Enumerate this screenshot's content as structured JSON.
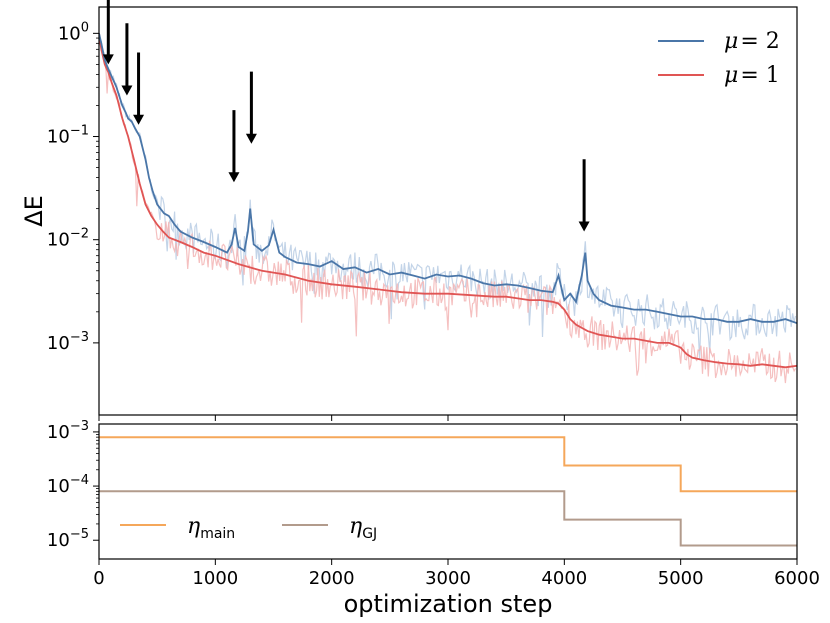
{
  "chart_data": [
    {
      "type": "line",
      "panel": "top",
      "yscale": "log",
      "ylabel": "ΔE",
      "xlim": [
        0,
        6000
      ],
      "ylim": [
        0.0002,
        1.8
      ],
      "xticks": [
        0,
        1000,
        2000,
        3000,
        4000,
        5000,
        6000
      ],
      "yticks": [
        {
          "value": 1,
          "base": "10",
          "exp": "0"
        },
        {
          "value": 0.1,
          "base": "10",
          "exp": "−1"
        },
        {
          "value": 0.01,
          "base": "10",
          "exp": "−2"
        },
        {
          "value": 0.001,
          "base": "10",
          "exp": "−3"
        }
      ],
      "legend": {
        "position": "top-right"
      },
      "series": [
        {
          "name": "μ = 2",
          "label_var": "μ",
          "label_eq": "= 2",
          "color": "#4a76a8",
          "raw_color": "#b8cce4",
          "x": [
            0,
            20,
            50,
            80,
            110,
            150,
            200,
            230,
            250,
            280,
            310,
            350,
            400,
            430,
            460,
            500,
            560,
            600,
            650,
            700,
            800,
            900,
            1000,
            1100,
            1140,
            1170,
            1200,
            1250,
            1280,
            1300,
            1330,
            1400,
            1460,
            1500,
            1550,
            1600,
            1700,
            1800,
            1900,
            2000,
            2100,
            2200,
            2300,
            2400,
            2500,
            2600,
            2700,
            2800,
            2900,
            3000,
            3100,
            3200,
            3300,
            3400,
            3500,
            3600,
            3700,
            3800,
            3900,
            3950,
            4000,
            4050,
            4100,
            4150,
            4180,
            4200,
            4250,
            4300,
            4400,
            4500,
            4600,
            4700,
            4800,
            4900,
            5000,
            5100,
            5200,
            5300,
            5400,
            5500,
            5600,
            5700,
            5800,
            5900,
            6000
          ],
          "y": [
            1.0,
            0.8,
            0.55,
            0.45,
            0.38,
            0.3,
            0.2,
            0.17,
            0.15,
            0.14,
            0.12,
            0.1,
            0.06,
            0.04,
            0.03,
            0.022,
            0.018,
            0.017,
            0.014,
            0.012,
            0.0105,
            0.0095,
            0.0085,
            0.0075,
            0.009,
            0.013,
            0.0085,
            0.0078,
            0.012,
            0.02,
            0.009,
            0.0078,
            0.0088,
            0.0125,
            0.0075,
            0.0068,
            0.006,
            0.0058,
            0.0055,
            0.0062,
            0.0052,
            0.0054,
            0.0048,
            0.0052,
            0.0046,
            0.0048,
            0.0045,
            0.0042,
            0.0046,
            0.0044,
            0.0045,
            0.0042,
            0.0038,
            0.0036,
            0.0037,
            0.0036,
            0.0034,
            0.0032,
            0.0031,
            0.0045,
            0.0026,
            0.003,
            0.0025,
            0.0045,
            0.0075,
            0.004,
            0.003,
            0.0026,
            0.0023,
            0.0022,
            0.0021,
            0.0021,
            0.002,
            0.0019,
            0.0018,
            0.0018,
            0.0017,
            0.0017,
            0.0016,
            0.0016,
            0.0017,
            0.0016,
            0.0016,
            0.0017,
            0.00155
          ]
        },
        {
          "name": "μ = 1",
          "label_var": "μ",
          "label_eq": "= 1",
          "color": "#e05554",
          "raw_color": "#f3b5b5",
          "x": [
            0,
            20,
            50,
            80,
            110,
            150,
            200,
            250,
            300,
            350,
            400,
            450,
            500,
            550,
            600,
            700,
            800,
            900,
            1000,
            1200,
            1400,
            1600,
            1800,
            2000,
            2200,
            2400,
            2600,
            2800,
            3000,
            3200,
            3400,
            3500,
            3600,
            3700,
            3800,
            3900,
            3950,
            4000,
            4050,
            4100,
            4200,
            4300,
            4400,
            4500,
            4600,
            4700,
            4800,
            4900,
            4950,
            5000,
            5050,
            5100,
            5200,
            5300,
            5400,
            5500,
            5600,
            5700,
            5800,
            5900,
            6000
          ],
          "y": [
            1.0,
            0.7,
            0.5,
            0.42,
            0.33,
            0.25,
            0.15,
            0.1,
            0.06,
            0.035,
            0.022,
            0.017,
            0.014,
            0.012,
            0.0105,
            0.0095,
            0.0085,
            0.0075,
            0.007,
            0.0058,
            0.005,
            0.0046,
            0.004,
            0.0037,
            0.0035,
            0.0033,
            0.0031,
            0.003,
            0.003,
            0.0029,
            0.0028,
            0.0028,
            0.0027,
            0.0026,
            0.0026,
            0.0025,
            0.0024,
            0.0021,
            0.0017,
            0.0015,
            0.0013,
            0.0012,
            0.00115,
            0.0011,
            0.0011,
            0.00105,
            0.001,
            0.001,
            0.00095,
            0.0009,
            0.00078,
            0.00072,
            0.00068,
            0.00065,
            0.00063,
            0.00062,
            0.0006,
            0.00062,
            0.0006,
            0.00058,
            0.0006
          ]
        }
      ],
      "annotations": [
        {
          "type": "arrow",
          "x": 80,
          "y": 0.5,
          "length_decades": 0.7
        },
        {
          "type": "arrow",
          "x": 240,
          "y": 0.25,
          "length_decades": 0.7
        },
        {
          "type": "arrow",
          "x": 340,
          "y": 0.13,
          "length_decades": 0.7
        },
        {
          "type": "arrow",
          "x": 1160,
          "y": 0.036,
          "length_decades": 0.7
        },
        {
          "type": "arrow",
          "x": 1310,
          "y": 0.085,
          "length_decades": 0.7
        },
        {
          "type": "arrow",
          "x": 4170,
          "y": 0.012,
          "length_decades": 0.7
        }
      ]
    },
    {
      "type": "line",
      "panel": "bottom",
      "yscale": "log",
      "xlabel": "optimization step",
      "xlim": [
        0,
        6000
      ],
      "ylim": [
        4.5e-06,
        0.0014
      ],
      "xticks": [
        0,
        1000,
        2000,
        3000,
        4000,
        5000,
        6000
      ],
      "yticks": [
        {
          "value": 0.001,
          "base": "10",
          "exp": "−3"
        },
        {
          "value": 0.0001,
          "base": "10",
          "exp": "−4"
        },
        {
          "value": 1e-05,
          "base": "10",
          "exp": "−5"
        }
      ],
      "legend": {
        "position": "bottom-left"
      },
      "series": [
        {
          "name": "η_main",
          "label_var": "η",
          "label_sub": "main",
          "color": "#f5a75a",
          "x": [
            0,
            4000,
            4000,
            5000,
            5000,
            6000
          ],
          "y": [
            0.0008,
            0.0008,
            0.00024,
            0.00024,
            8e-05,
            8e-05
          ]
        },
        {
          "name": "η_GJ",
          "label_var": "η",
          "label_sub": "GJ",
          "color": "#b29b8c",
          "x": [
            0,
            4000,
            4000,
            5000,
            5000,
            6000
          ],
          "y": [
            8e-05,
            8e-05,
            2.4e-05,
            2.4e-05,
            8e-06,
            8e-06
          ]
        }
      ]
    }
  ]
}
